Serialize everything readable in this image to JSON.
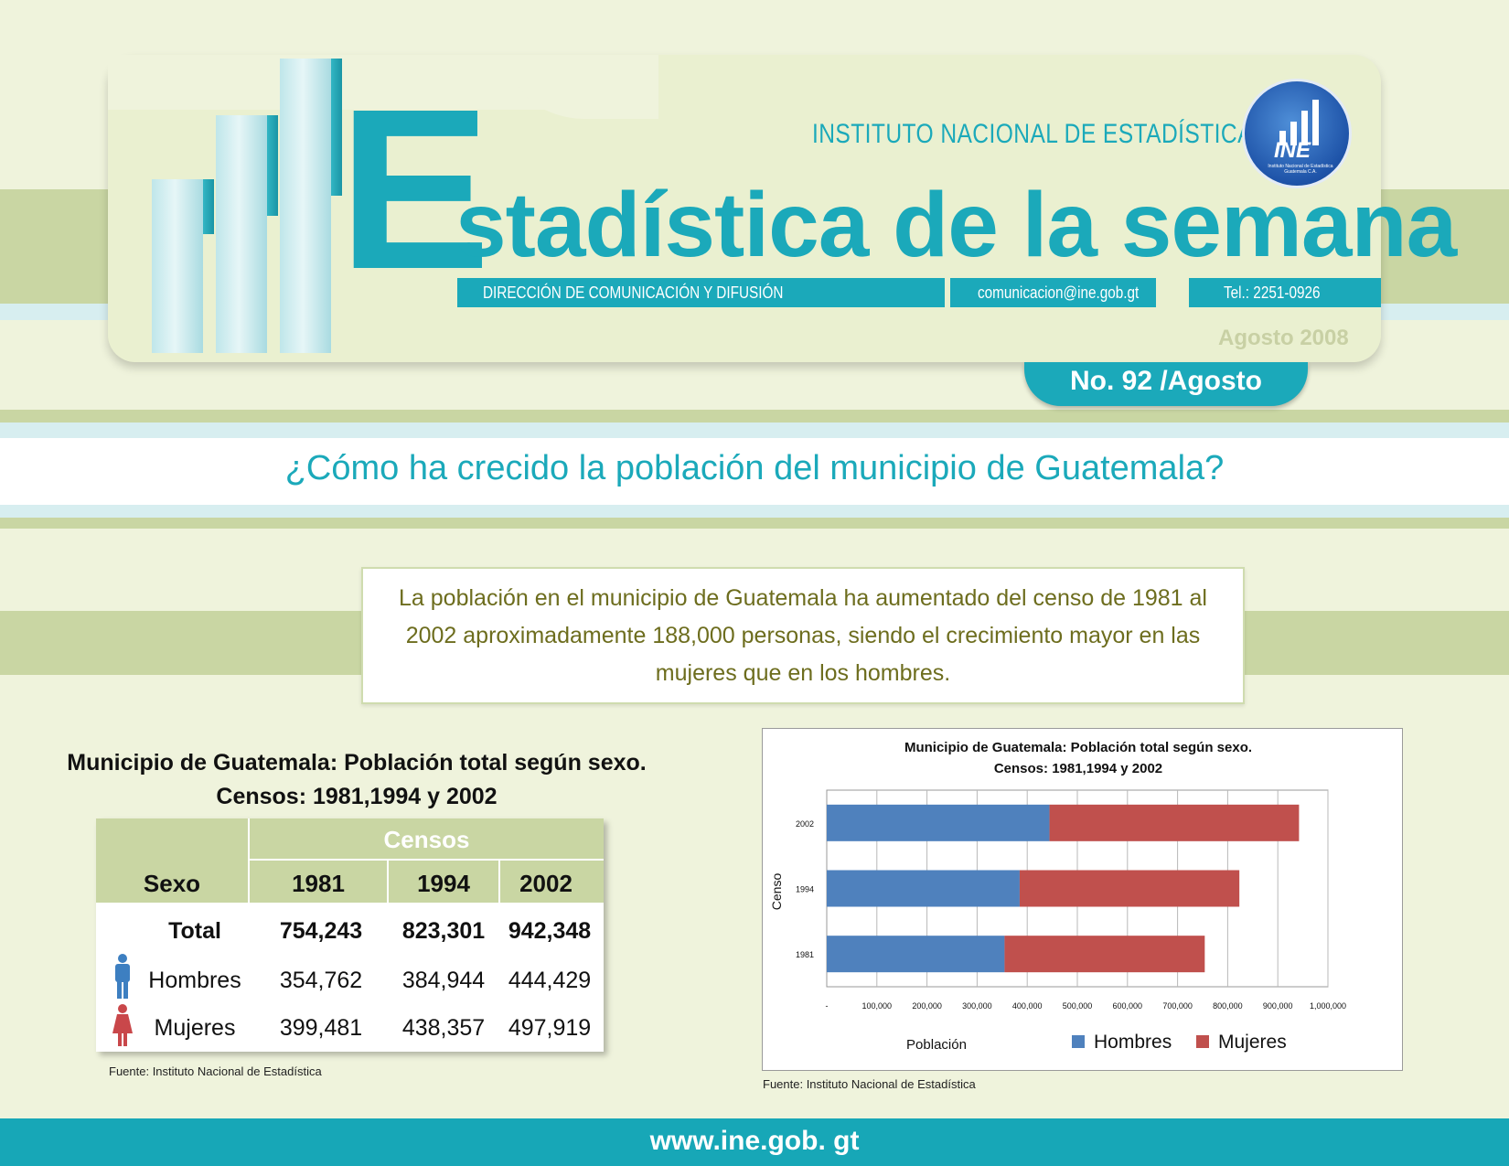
{
  "header": {
    "institute": "INSTITUTO NACIONAL DE ESTADÍSTICA",
    "title_initial": "E",
    "title_rest": "stadística de la semana",
    "department": "DIRECCIÓN DE COMUNICACIÓN Y DIFUSIÓN",
    "email": "comunicacion@ine.gob.gt",
    "phone": "Tel.: 2251-0926",
    "date": "Agosto 2008",
    "issue": "No. 92 /Agosto",
    "logo": {
      "abbr": "INE",
      "text": "Instituto Nacional de Estadística Guatemala C.A."
    }
  },
  "question": "¿Cómo ha crecido la población del municipio de Guatemala?",
  "summary": "La población en el municipio de Guatemala ha aumentado del censo de 1981 al 2002 aproximadamente 188,000 personas, siendo el crecimiento mayor en las mujeres que en los hombres.",
  "table": {
    "title_line1": "Municipio de Guatemala: Población total según sexo.",
    "title_line2": "Censos: 1981,1994 y 2002",
    "group_header": "Censos",
    "sex_header": "Sexo",
    "years": [
      "1981",
      "1994",
      "2002"
    ],
    "rows": [
      {
        "label": "Total",
        "values": [
          "754,243",
          "823,301",
          "942,348"
        ],
        "icon": "none"
      },
      {
        "label": "Hombres",
        "values": [
          "354,762",
          "384,944",
          "444,429"
        ],
        "icon": "male-person-icon"
      },
      {
        "label": "Mujeres",
        "values": [
          "399,481",
          "438,357",
          "497,919"
        ],
        "icon": "female-person-icon"
      }
    ],
    "source": "Fuente: Instituto Nacional de Estadística"
  },
  "chart_data": {
    "type": "bar",
    "orientation": "horizontal",
    "stacked": true,
    "title_line1": "Municipio de Guatemala: Población total según sexo.",
    "title_line2": "Censos: 1981,1994 y 2002",
    "categories": [
      "2002",
      "1994",
      "1981"
    ],
    "series": [
      {
        "name": "Hombres",
        "color": "#4f81bd",
        "values": [
          444429,
          384944,
          354762
        ]
      },
      {
        "name": "Mujeres",
        "color": "#c0504d",
        "values": [
          497919,
          438357,
          399481
        ]
      }
    ],
    "xlabel": "Población",
    "ylabel": "Censo",
    "xlim": [
      0,
      1000000
    ],
    "xticks": [
      "-",
      "100,000",
      "200,000",
      "300,000",
      "400,000",
      "500,000",
      "600,000",
      "700,000",
      "800,000",
      "900,000",
      "1,000,000"
    ],
    "grid": true,
    "legend": "bottom",
    "source": "Fuente: Instituto Nacional de Estadística"
  },
  "footer": {
    "url": "www.ine.gob. gt"
  }
}
